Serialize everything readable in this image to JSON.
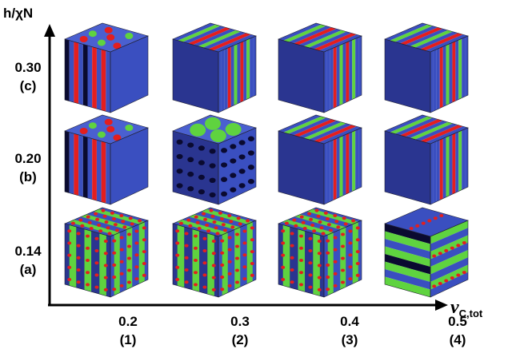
{
  "axes": {
    "y_label": "h/χN",
    "x_label_symbol": "ν",
    "x_label_sub": "C,tot"
  },
  "rows": [
    {
      "value": "0.30",
      "tag": "(c)"
    },
    {
      "value": "0.20",
      "tag": "(b)"
    },
    {
      "value": "0.14",
      "tag": "(a)"
    }
  ],
  "columns": [
    {
      "value": "0.2",
      "tag": "(1)"
    },
    {
      "value": "0.3",
      "tag": "(2)"
    },
    {
      "value": "0.4",
      "tag": "(3)"
    },
    {
      "value": "0.5",
      "tag": "(4)"
    }
  ]
}
